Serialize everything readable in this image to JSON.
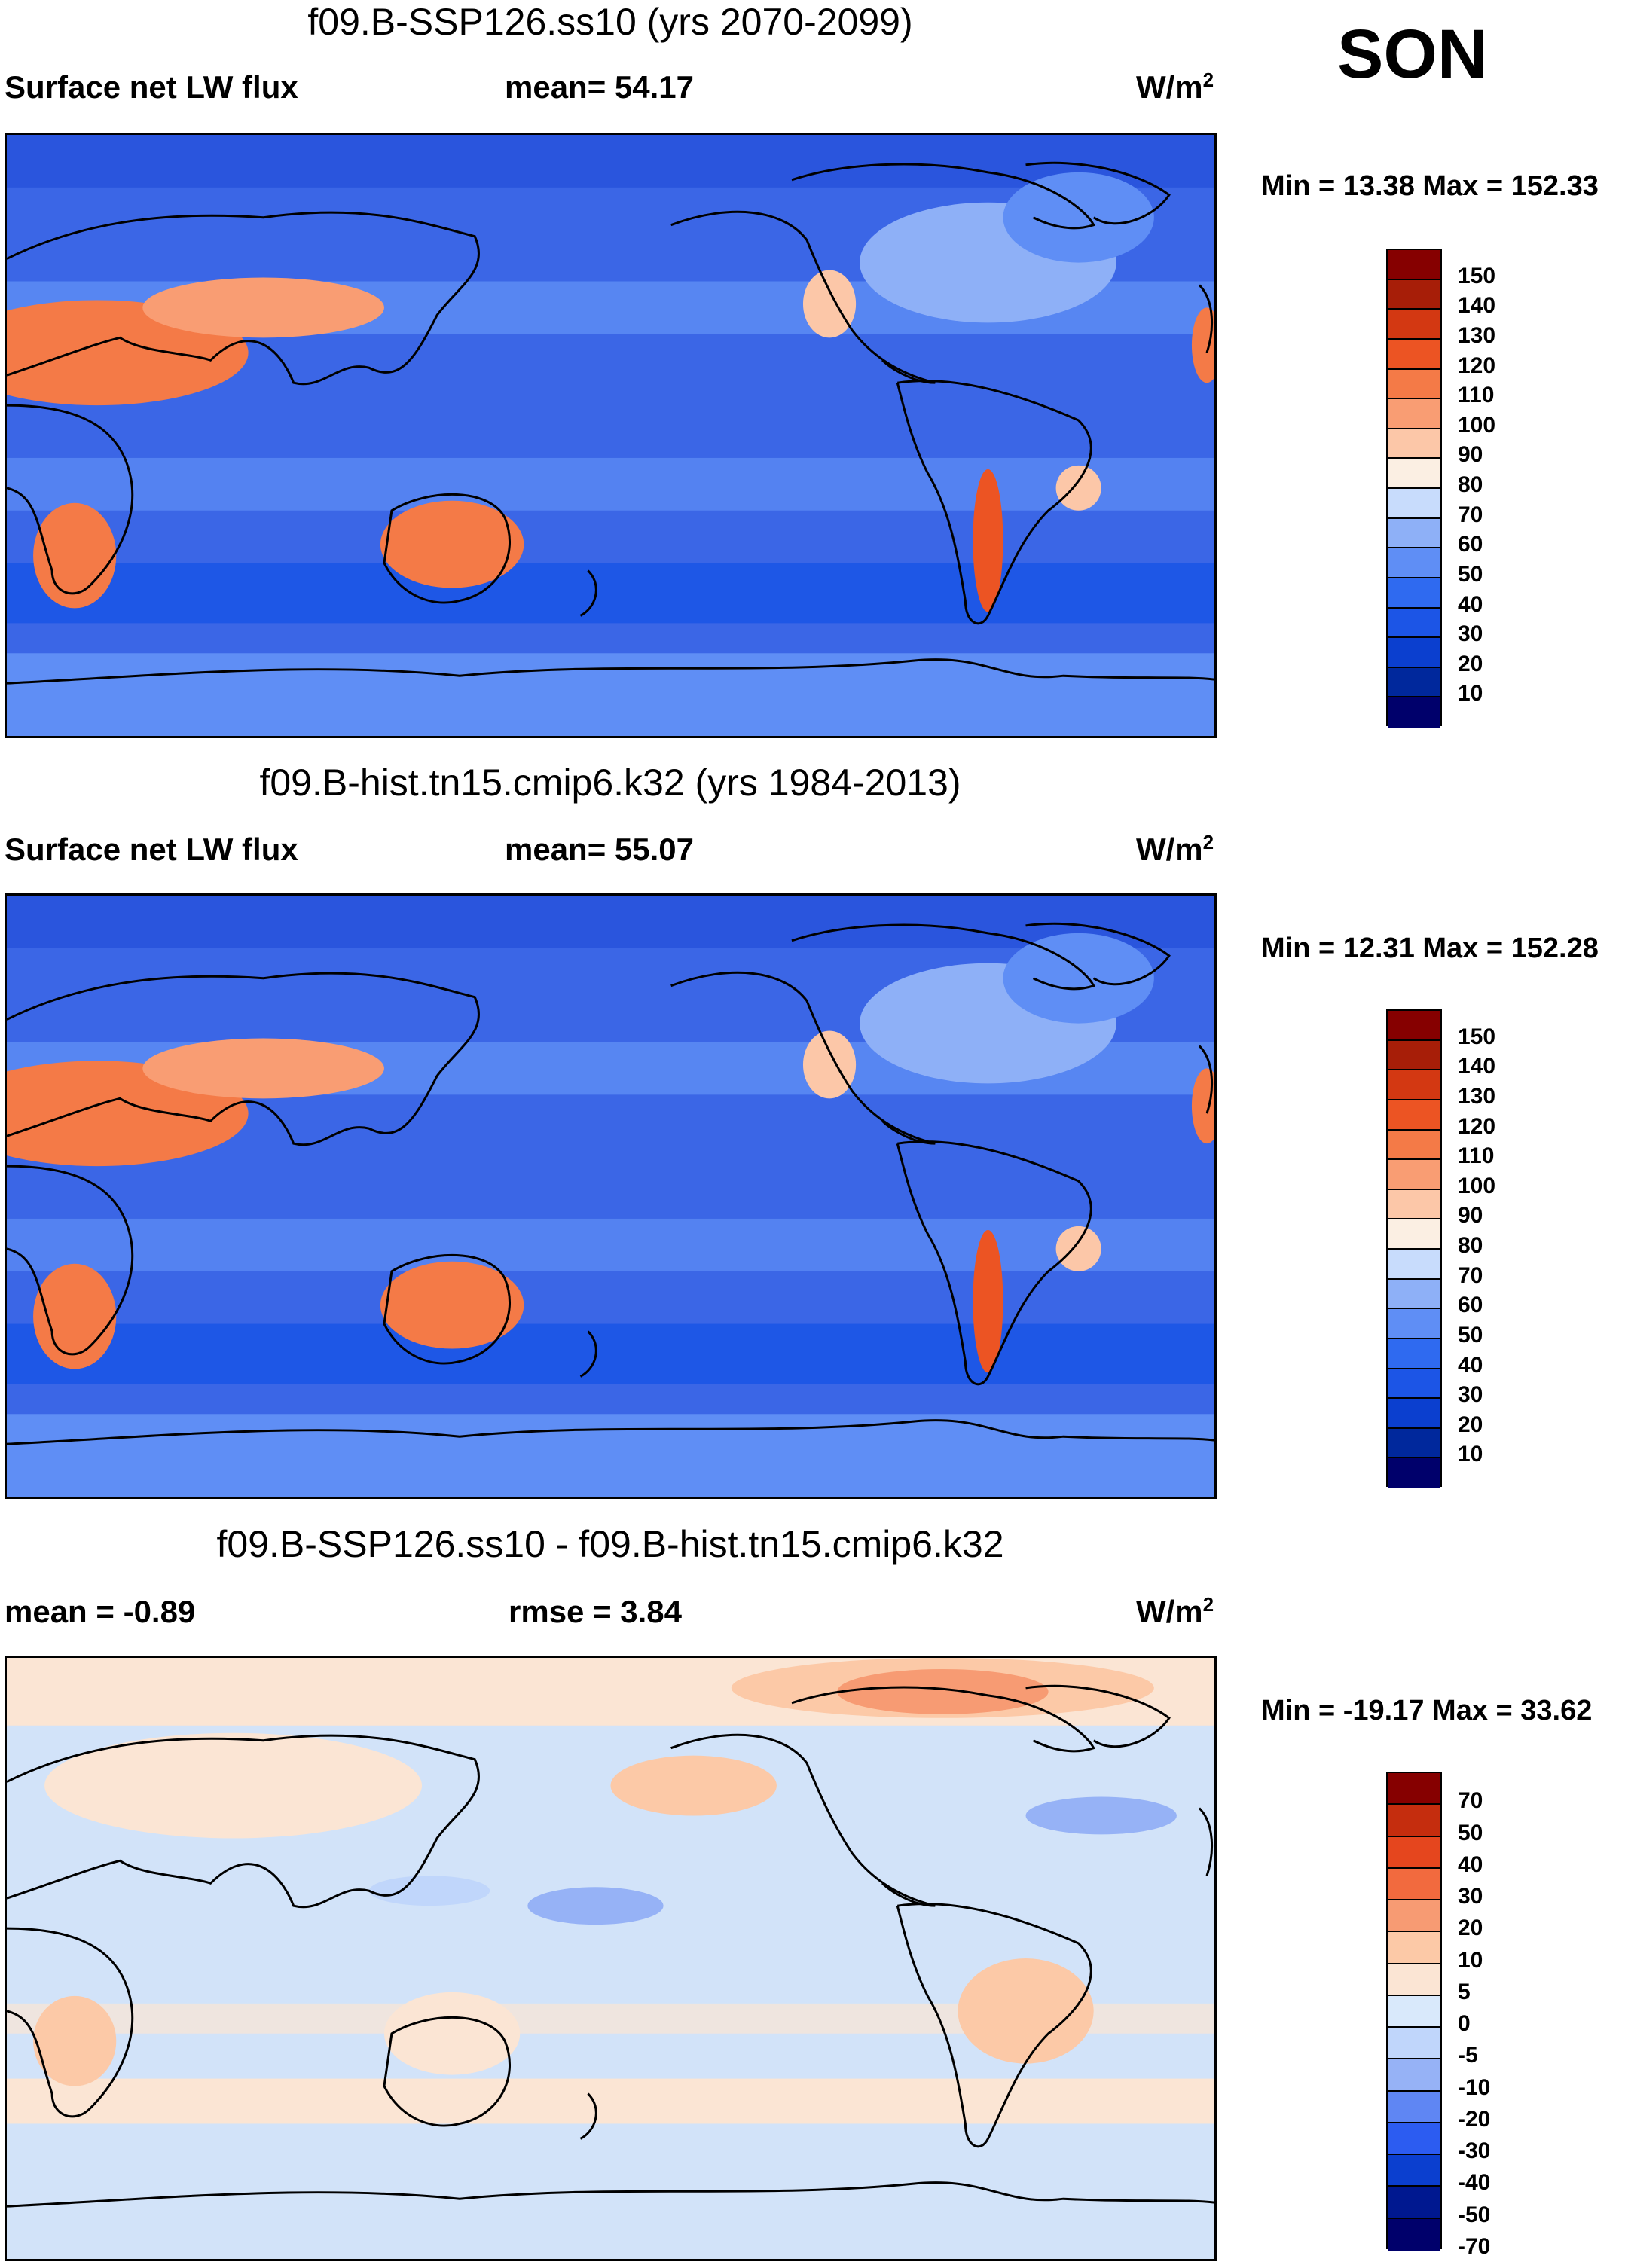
{
  "season": "SON",
  "colors": {
    "abs_scale": [
      "#00006b",
      "#00289c",
      "#0b3fcf",
      "#1c55e6",
      "#2f6af0",
      "#5f8ef5",
      "#8eb0f7",
      "#c8dcfc",
      "#fbefe3",
      "#fcc7a8",
      "#f99d73",
      "#f47a47",
      "#ec5423",
      "#d33812",
      "#a71e08",
      "#860000"
    ],
    "diff_scale": [
      "#00006b",
      "#001890",
      "#0b3fcf",
      "#2c5cf1",
      "#5f86f3",
      "#96b2f6",
      "#c0d6fb",
      "#d9e9fb",
      "#fbe5d4",
      "#fcc9a7",
      "#f79b73",
      "#f26a3e",
      "#e5461e",
      "#c52d0e",
      "#860000"
    ],
    "ocean_abs": "#3b66e6",
    "ocean_diff": "#d2e3f9"
  },
  "panels": [
    {
      "title": "f09.B-SSP126.ss10 (yrs 2070-2099)",
      "left_label": "Surface net LW flux",
      "center_label": "mean=  54.17",
      "units": "W/m",
      "units_sup": "2",
      "minmax": "Min =  13.38 Max = 152.33",
      "colorbar_labels": [
        "150",
        "140",
        "130",
        "120",
        "110",
        "100",
        "90",
        "80",
        "70",
        "60",
        "50",
        "40",
        "30",
        "20",
        "10"
      ]
    },
    {
      "title": "f09.B-hist.tn15.cmip6.k32 (yrs 1984-2013)",
      "left_label": "Surface net LW flux",
      "center_label": "mean=  55.07",
      "units": "W/m",
      "units_sup": "2",
      "minmax": "Min =  12.31 Max = 152.28",
      "colorbar_labels": [
        "150",
        "140",
        "130",
        "120",
        "110",
        "100",
        "90",
        "80",
        "70",
        "60",
        "50",
        "40",
        "30",
        "20",
        "10"
      ]
    },
    {
      "title": "f09.B-SSP126.ss10 - f09.B-hist.tn15.cmip6.k32",
      "left_label": "mean =  -0.89",
      "center_label": "rmse =    3.84",
      "units": "W/m",
      "units_sup": "2",
      "minmax": "Min = -19.17 Max =  33.62",
      "colorbar_labels": [
        "70",
        "50",
        "40",
        "30",
        "20",
        "10",
        "5",
        "0",
        "-5",
        "-10",
        "-20",
        "-30",
        "-40",
        "-50",
        "-70"
      ]
    }
  ]
}
